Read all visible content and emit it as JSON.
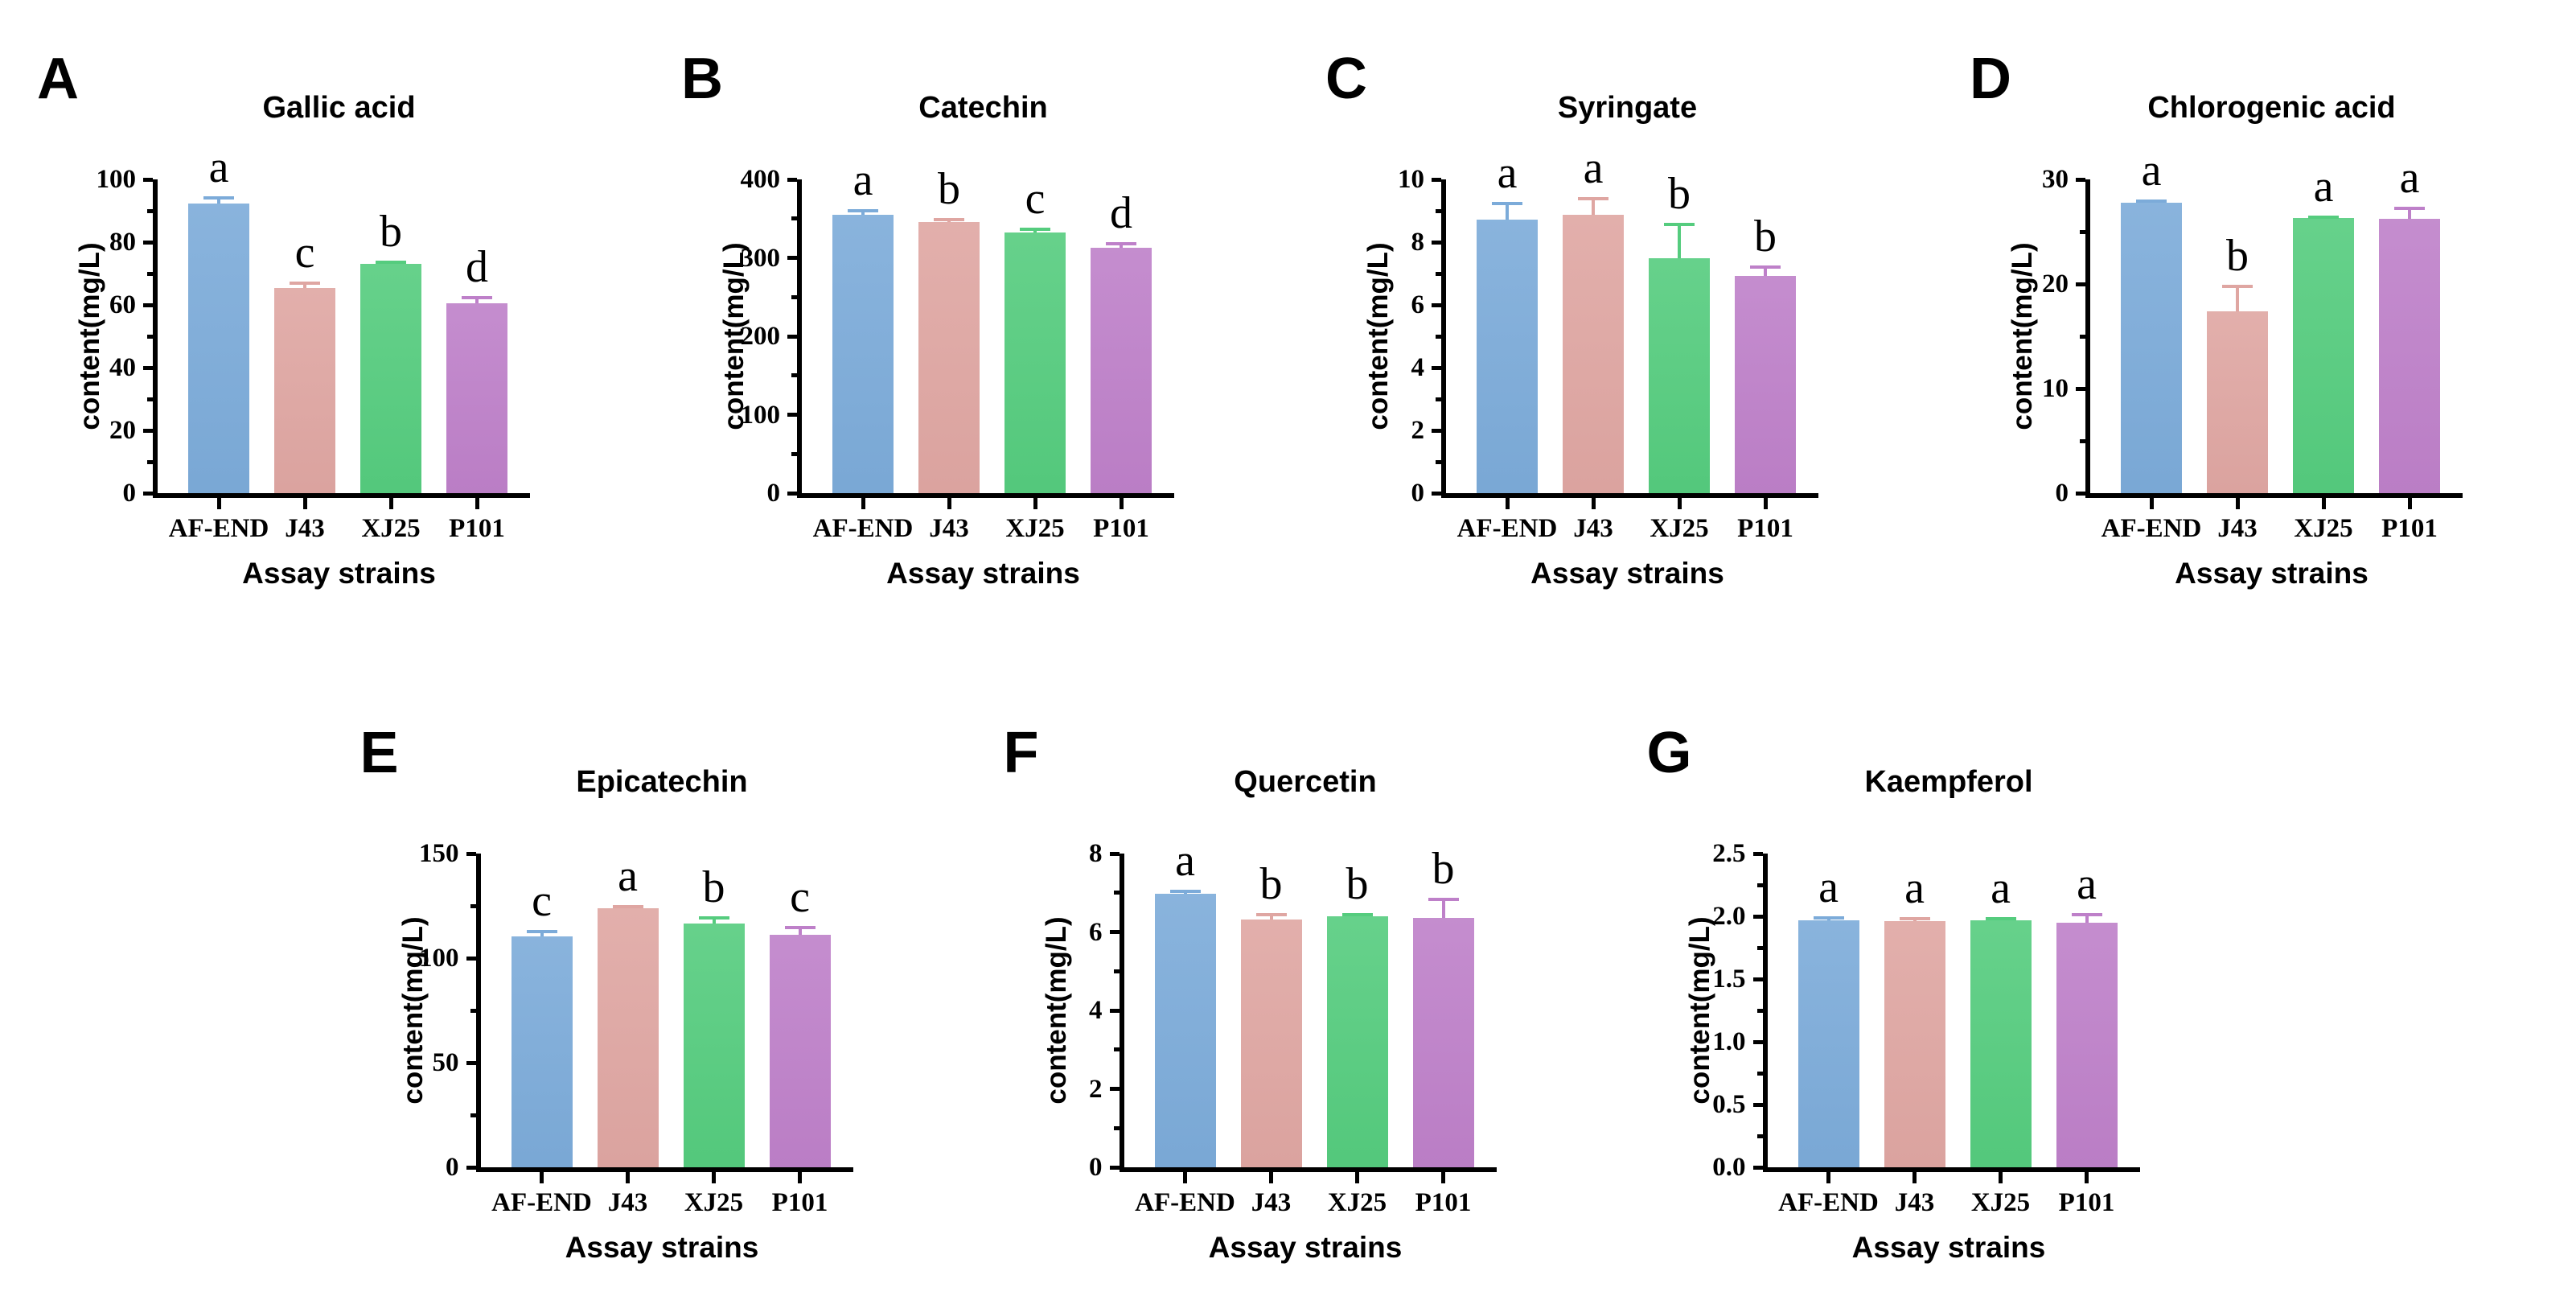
{
  "figure": {
    "bar_colors": [
      "#7CABD9",
      "#DFA6A2",
      "#55CC7E",
      "#BE80C9"
    ],
    "axis_color": "#000000",
    "background": "#ffffff",
    "categories": [
      "AF-END",
      "J43",
      "XJ25",
      "P101"
    ],
    "xlabel": "Assay strains",
    "ylabel": "content(mg/L)"
  },
  "chart_data": [
    {
      "panel": "A",
      "row": 0,
      "type": "bar",
      "title": "Gallic acid",
      "xlabel": "Assay strains",
      "ylabel": "content(mg/L)",
      "categories": [
        "AF-END",
        "J43",
        "XJ25",
        "P101"
      ],
      "values": [
        92.3,
        65.5,
        73.2,
        60.4
      ],
      "errors": [
        1.7,
        1.5,
        0.4,
        1.8
      ],
      "sig_letters": [
        "a",
        "c",
        "b",
        "d"
      ],
      "ylim": [
        0,
        100
      ],
      "ymajor": 20,
      "yminor": 10,
      "tick_decimals": 0,
      "grid": false
    },
    {
      "panel": "B",
      "row": 0,
      "type": "bar",
      "title": "Catechin",
      "xlabel": "Assay strains",
      "ylabel": "content(mg/L)",
      "categories": [
        "AF-END",
        "J43",
        "XJ25",
        "P101"
      ],
      "values": [
        354.5,
        345.5,
        332.5,
        313.0
      ],
      "errors": [
        5.5,
        3.0,
        4.0,
        5.0
      ],
      "sig_letters": [
        "a",
        "b",
        "c",
        "d"
      ],
      "ylim": [
        0,
        400
      ],
      "ymajor": 100,
      "yminor": 50,
      "tick_decimals": 0,
      "grid": false
    },
    {
      "panel": "C",
      "row": 0,
      "type": "bar",
      "title": "Syringate",
      "xlabel": "Assay strains",
      "ylabel": "content(mg/L)",
      "categories": [
        "AF-END",
        "J43",
        "XJ25",
        "P101"
      ],
      "values": [
        8.72,
        8.88,
        7.48,
        6.93
      ],
      "errors": [
        0.5,
        0.5,
        1.08,
        0.27
      ],
      "sig_letters": [
        "a",
        "a",
        "b",
        "b"
      ],
      "ylim": [
        0,
        10
      ],
      "ymajor": 2,
      "yminor": 1,
      "tick_decimals": 0,
      "grid": false
    },
    {
      "panel": "D",
      "row": 0,
      "type": "bar",
      "title": "Chlorogenic acid",
      "xlabel": "Assay strains",
      "ylabel": "content(mg/L)",
      "categories": [
        "AF-END",
        "J43",
        "XJ25",
        "P101"
      ],
      "values": [
        27.8,
        17.35,
        26.3,
        26.2
      ],
      "errors": [
        0.15,
        2.4,
        0.12,
        1.0
      ],
      "sig_letters": [
        "a",
        "b",
        "a",
        "a"
      ],
      "ylim": [
        0,
        30
      ],
      "ymajor": 10,
      "yminor": 5,
      "tick_decimals": 0,
      "grid": false
    },
    {
      "panel": "E",
      "row": 1,
      "type": "bar",
      "title": "Epicatechin",
      "xlabel": "Assay strains",
      "ylabel": "content(mg/L)",
      "categories": [
        "AF-END",
        "J43",
        "XJ25",
        "P101"
      ],
      "values": [
        110.2,
        124.0,
        116.5,
        111.0
      ],
      "errors": [
        2.4,
        0.7,
        2.9,
        3.6
      ],
      "sig_letters": [
        "c",
        "a",
        "b",
        "c"
      ],
      "ylim": [
        0,
        150
      ],
      "ymajor": 50,
      "yminor": 25,
      "tick_decimals": 0,
      "grid": false
    },
    {
      "panel": "F",
      "row": 1,
      "type": "bar",
      "title": "Quercetin",
      "xlabel": "Assay strains",
      "ylabel": "content(mg/L)",
      "categories": [
        "AF-END",
        "J43",
        "XJ25",
        "P101"
      ],
      "values": [
        6.97,
        6.32,
        6.4,
        6.36
      ],
      "errors": [
        0.07,
        0.13,
        0.05,
        0.48
      ],
      "sig_letters": [
        "a",
        "b",
        "b",
        "b"
      ],
      "ylim": [
        0,
        8
      ],
      "ymajor": 2,
      "yminor": 1,
      "tick_decimals": 0,
      "grid": false
    },
    {
      "panel": "G",
      "row": 1,
      "type": "bar",
      "title": "Kaempferol",
      "xlabel": "Assay strains",
      "ylabel": "content(mg/L)",
      "categories": [
        "AF-END",
        "J43",
        "XJ25",
        "P101"
      ],
      "values": [
        1.97,
        1.96,
        1.97,
        1.95
      ],
      "errors": [
        0.02,
        0.018,
        0.014,
        0.06
      ],
      "sig_letters": [
        "a",
        "a",
        "a",
        "a"
      ],
      "ylim": [
        0,
        2.5
      ],
      "ymajor": 0.5,
      "yminor": 0.25,
      "tick_decimals": 1,
      "grid": false
    }
  ]
}
